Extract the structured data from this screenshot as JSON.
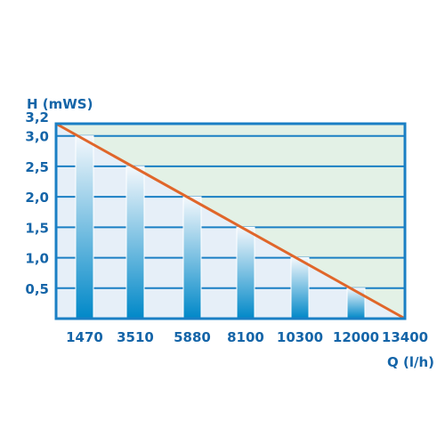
{
  "chart_data": {
    "type": "bar",
    "ylabel": "H (mWS)",
    "xlabel": "Q (l/h)",
    "categories": [
      "1470",
      "3510",
      "5880",
      "8100",
      "10300",
      "12000",
      "13400"
    ],
    "values": [
      3.0,
      2.5,
      2.0,
      1.5,
      1.0,
      0.5,
      0.0
    ],
    "ylim": [
      0,
      3.2
    ],
    "yticks": [
      "0,5",
      "1,0",
      "1,5",
      "2,0",
      "2,5",
      "3,0",
      "3,2"
    ],
    "ytick_values": [
      0.5,
      1.0,
      1.5,
      2.0,
      2.5,
      3.0,
      3.2
    ],
    "line": {
      "from": [
        0,
        3.2
      ],
      "to": [
        6,
        0.0
      ]
    },
    "grid": true,
    "colors": {
      "frame": "#1a7fc4",
      "text": "#1565a8",
      "line": "#e0662a",
      "bar_top": "#f4f8fc",
      "bar_bottom": "#0088c8",
      "above_line": "#e3f1e6",
      "below_line": "#e6eff8"
    }
  }
}
